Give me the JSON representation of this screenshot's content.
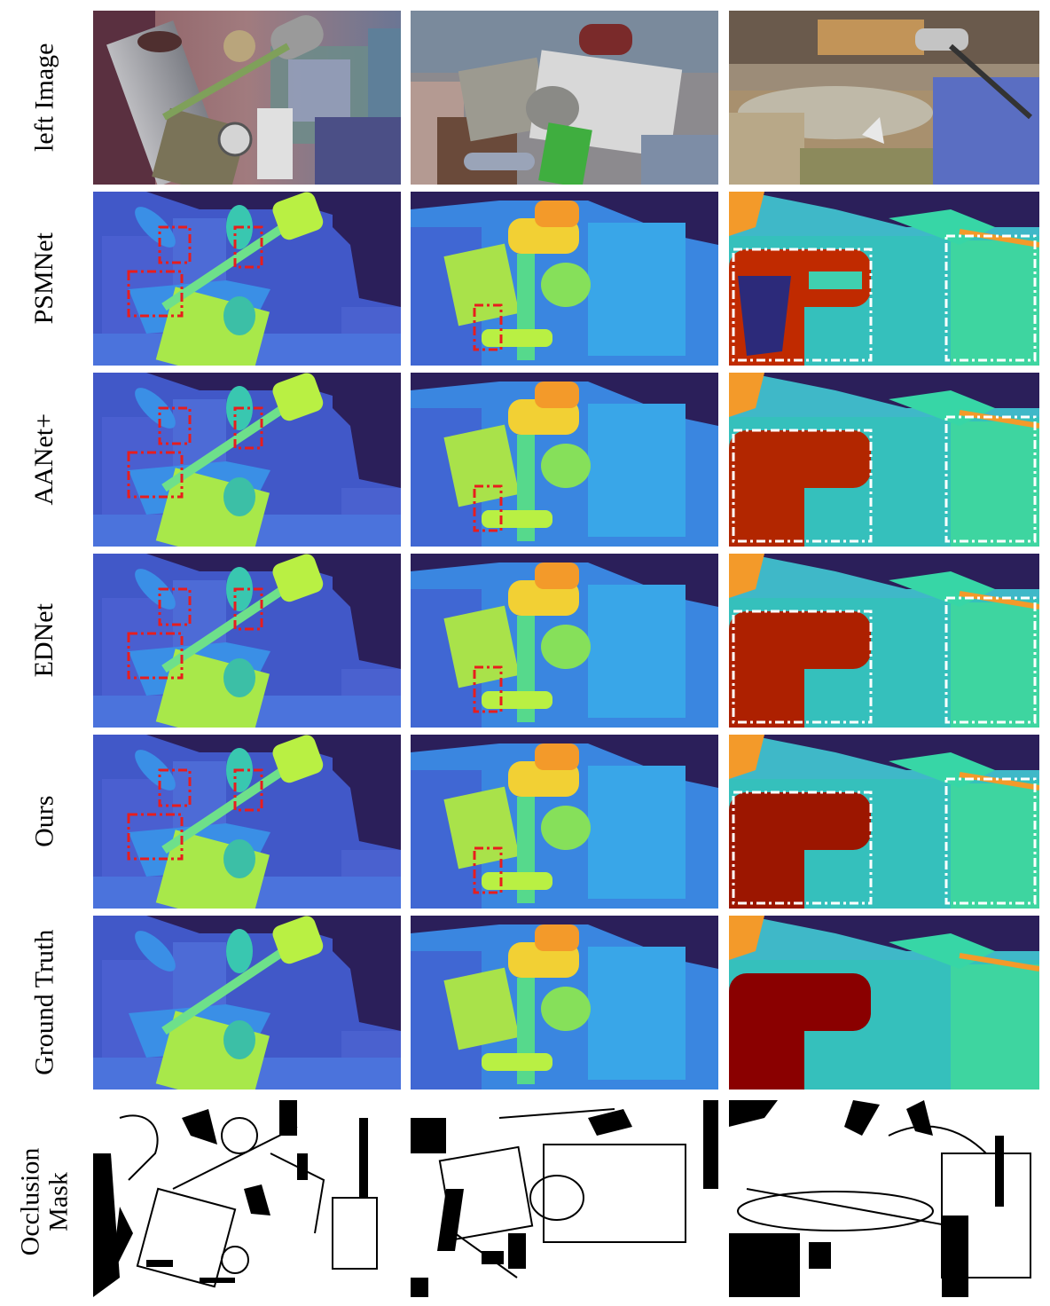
{
  "figure": {
    "rows": [
      {
        "key": "left",
        "label": [
          "left Image"
        ]
      },
      {
        "key": "psmnet",
        "label": [
          "PSMNet"
        ]
      },
      {
        "key": "aanet",
        "label": [
          "AANet+"
        ]
      },
      {
        "key": "ednet",
        "label": [
          "EDNet"
        ]
      },
      {
        "key": "ours",
        "label": [
          "Ours"
        ]
      },
      {
        "key": "gt",
        "label": [
          "Ground Truth"
        ]
      },
      {
        "key": "occ",
        "label": [
          "Occlusion",
          "Mask"
        ]
      }
    ],
    "colors": {
      "background_dark": "#2b1f5a",
      "far_blue": "#4158c8",
      "mid_blue": "#3a8fe6",
      "cyan": "#2fc4c4",
      "green": "#3ed5a0",
      "lime": "#b9f043",
      "yellow": "#f2e33a",
      "orange": "#f39a2a",
      "dark_red": "#8a0000",
      "red_box": "#e81d1d",
      "white_box": "#ffffff"
    }
  }
}
